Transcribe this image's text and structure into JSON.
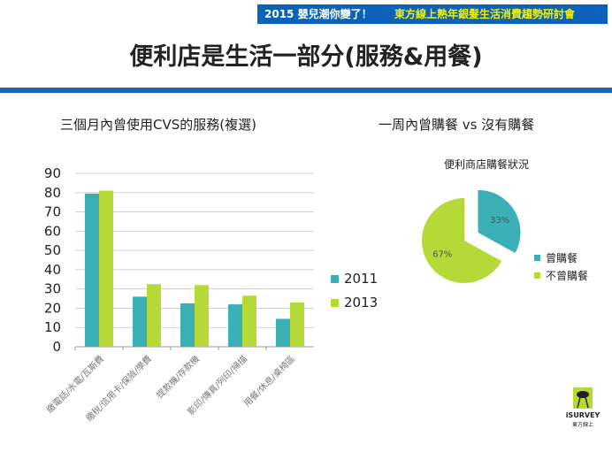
{
  "banner": {
    "left": "2015 嬰兒潮你變了！",
    "right": "東方線上熟年銀髮生活消費趨勢研討會"
  },
  "title": "便利店是生活一部分(服務&用餐)",
  "left_subtitle": "三個月內曾使用CVS的服務(複選)",
  "right_subtitle": "一周內曾購餐 vs 沒有購餐",
  "logo_text": "iSURVEY 東方線上",
  "chart_data": [
    {
      "type": "bar",
      "title": "",
      "categories": [
        "繳電話/水電/瓦斯費",
        "繳稅/信用卡/保險/學費",
        "提款機/存款機",
        "影印/傳真/列印/掃描",
        "用餐/休息/桌椅區"
      ],
      "series": [
        {
          "name": "2011",
          "color": "#3aafb4",
          "values": [
            79.5,
            26,
            22.5,
            22,
            14.5
          ]
        },
        {
          "name": "2013",
          "color": "#b5d936",
          "values": [
            81,
            32.5,
            32,
            26.5,
            23
          ]
        }
      ],
      "ylim": [
        0,
        90
      ],
      "yticks": [
        0,
        10,
        20,
        30,
        40,
        50,
        60,
        70,
        80,
        90
      ],
      "grid": true,
      "legend": "right"
    },
    {
      "type": "pie",
      "title": "便利商店購餐狀況",
      "slices": [
        {
          "name": "曾購餐",
          "value": 33,
          "label": "33%",
          "color": "#3aafb4"
        },
        {
          "name": "不曾購餐",
          "value": 67,
          "label": "67%",
          "color": "#b5d936"
        }
      ],
      "legend": "right"
    }
  ]
}
